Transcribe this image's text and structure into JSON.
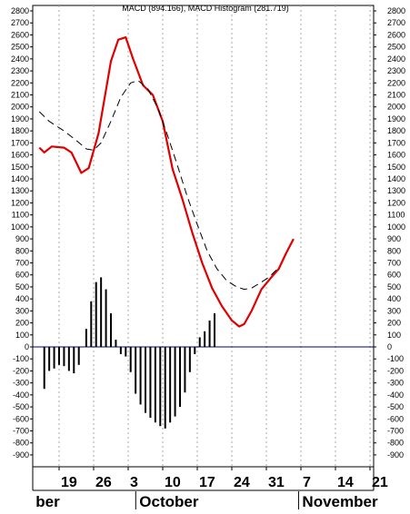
{
  "chart_data": {
    "type": "line",
    "title": "MACD (894.166), MACD Histogram (281.719)",
    "ylim": [
      -1000,
      2900
    ],
    "y_ticks": [
      2800,
      2700,
      2600,
      2500,
      2400,
      2300,
      2200,
      2100,
      2000,
      1900,
      1800,
      1700,
      1600,
      1500,
      1400,
      1300,
      1200,
      1100,
      1000,
      900,
      800,
      700,
      600,
      500,
      400,
      300,
      200,
      100,
      0,
      -100,
      -200,
      -300,
      -400,
      -500,
      -600,
      -700,
      -800,
      -900
    ],
    "date_ticks": [
      {
        "label": "19",
        "x": 0
      },
      {
        "label": "26",
        "x": 7
      },
      {
        "label": "3",
        "x": 14
      },
      {
        "label": "10",
        "x": 21
      },
      {
        "label": "17",
        "x": 28
      },
      {
        "label": "24",
        "x": 35
      },
      {
        "label": "31",
        "x": 42
      },
      {
        "label": "7",
        "x": 49
      },
      {
        "label": "14",
        "x": 56
      },
      {
        "label": "21",
        "x": 63
      }
    ],
    "months": [
      {
        "label": "ber",
        "x": -4
      },
      {
        "label": "October",
        "x": 17
      },
      {
        "label": "November",
        "x": 50
      }
    ],
    "x_range": [
      -4,
      65
    ],
    "series": [
      {
        "kind": "line",
        "color": "#e00000",
        "points": [
          [
            -4,
            1660
          ],
          [
            -3,
            1620
          ],
          [
            -1.5,
            1670
          ],
          [
            1,
            1660
          ],
          [
            2.5,
            1620
          ],
          [
            4.5,
            1450
          ],
          [
            6,
            1490
          ],
          [
            8,
            1780
          ],
          [
            10.5,
            2380
          ],
          [
            12,
            2560
          ],
          [
            13.5,
            2580
          ],
          [
            15,
            2400
          ],
          [
            17,
            2180
          ],
          [
            18,
            2140
          ],
          [
            19,
            2100
          ],
          [
            21,
            1880
          ],
          [
            23,
            1480
          ],
          [
            25,
            1230
          ],
          [
            27,
            950
          ],
          [
            29,
            700
          ],
          [
            31,
            490
          ],
          [
            33,
            340
          ],
          [
            35,
            220
          ],
          [
            36.5,
            170
          ],
          [
            37.5,
            190
          ],
          [
            39,
            300
          ],
          [
            41,
            480
          ],
          [
            43,
            580
          ],
          [
            44.5,
            650
          ],
          [
            46,
            780
          ],
          [
            47.5,
            900
          ]
        ]
      },
      {
        "kind": "line",
        "dashed": true,
        "color": "#000000",
        "points": [
          [
            -4,
            1960
          ],
          [
            -2,
            1880
          ],
          [
            1,
            1800
          ],
          [
            3.5,
            1720
          ],
          [
            5.5,
            1650
          ],
          [
            7,
            1640
          ],
          [
            8.5,
            1700
          ],
          [
            10.5,
            1880
          ],
          [
            12.5,
            2080
          ],
          [
            14.5,
            2200
          ],
          [
            16,
            2220
          ],
          [
            18,
            2150
          ],
          [
            20,
            1990
          ],
          [
            22,
            1760
          ],
          [
            24,
            1510
          ],
          [
            26,
            1250
          ],
          [
            28,
            1020
          ],
          [
            30,
            800
          ],
          [
            32,
            650
          ],
          [
            34,
            550
          ],
          [
            36,
            500
          ],
          [
            37.5,
            480
          ],
          [
            39,
            490
          ],
          [
            41,
            540
          ],
          [
            42.5,
            580
          ],
          [
            44,
            640
          ]
        ]
      },
      {
        "kind": "histogram",
        "color": "#000000",
        "points": [
          [
            -3,
            -350
          ],
          [
            -2,
            -200
          ],
          [
            -1,
            -180
          ],
          [
            0,
            -150
          ],
          [
            1,
            -160
          ],
          [
            2,
            -200
          ],
          [
            3,
            -220
          ],
          [
            4,
            -150
          ],
          [
            5.5,
            150
          ],
          [
            6.5,
            380
          ],
          [
            7.5,
            540
          ],
          [
            8.5,
            580
          ],
          [
            9.5,
            480
          ],
          [
            10.5,
            280
          ],
          [
            11.5,
            60
          ],
          [
            12.5,
            -60
          ],
          [
            13.5,
            -80
          ],
          [
            14.5,
            -210
          ],
          [
            15.5,
            -390
          ],
          [
            16.5,
            -480
          ],
          [
            17.5,
            -550
          ],
          [
            18.5,
            -590
          ],
          [
            19.5,
            -630
          ],
          [
            20.5,
            -660
          ],
          [
            21.5,
            -680
          ],
          [
            22.5,
            -630
          ],
          [
            23.5,
            -580
          ],
          [
            24.5,
            -500
          ],
          [
            25.5,
            -380
          ],
          [
            26.5,
            -210
          ],
          [
            27.5,
            -60
          ],
          [
            28.5,
            80
          ],
          [
            29.5,
            130
          ],
          [
            30.5,
            220
          ],
          [
            31.5,
            280
          ]
        ]
      }
    ]
  }
}
